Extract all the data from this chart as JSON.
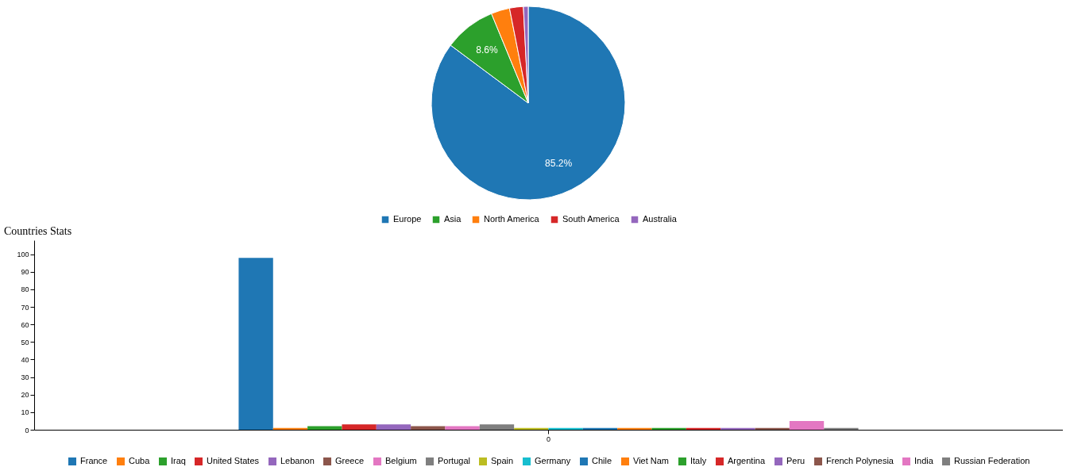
{
  "chart_data": [
    {
      "type": "pie",
      "categories": [
        "Europe",
        "Asia",
        "North America",
        "South America",
        "Australia"
      ],
      "values": [
        85.2,
        8.6,
        3.1,
        2.3,
        0.8
      ],
      "colors": [
        "#1f77b4",
        "#2ca02c",
        "#ff7f0e",
        "#d62728",
        "#9467bd"
      ],
      "value_labels": [
        "85.2%",
        "8.6%",
        null,
        null,
        null
      ],
      "legend": "bottom"
    },
    {
      "type": "bar",
      "title": "Countries Stats",
      "categories": [
        "0"
      ],
      "series": [
        {
          "name": "France",
          "color": "#1f77b4",
          "values": [
            98
          ]
        },
        {
          "name": "Cuba",
          "color": "#ff7f0e",
          "values": [
            1
          ]
        },
        {
          "name": "Iraq",
          "color": "#2ca02c",
          "values": [
            2
          ]
        },
        {
          "name": "United States",
          "color": "#d62728",
          "values": [
            3
          ]
        },
        {
          "name": "Lebanon",
          "color": "#9467bd",
          "values": [
            3
          ]
        },
        {
          "name": "Greece",
          "color": "#8c564b",
          "values": [
            2
          ]
        },
        {
          "name": "Belgium",
          "color": "#e377c2",
          "values": [
            2
          ]
        },
        {
          "name": "Portugal",
          "color": "#7f7f7f",
          "values": [
            3
          ]
        },
        {
          "name": "Spain",
          "color": "#bcbd22",
          "values": [
            1
          ]
        },
        {
          "name": "Germany",
          "color": "#17becf",
          "values": [
            1
          ]
        },
        {
          "name": "Chile",
          "color": "#1f77b4",
          "values": [
            1
          ]
        },
        {
          "name": "Viet Nam",
          "color": "#ff7f0e",
          "values": [
            1
          ]
        },
        {
          "name": "Italy",
          "color": "#2ca02c",
          "values": [
            1
          ]
        },
        {
          "name": "Argentina",
          "color": "#d62728",
          "values": [
            1
          ]
        },
        {
          "name": "Peru",
          "color": "#9467bd",
          "values": [
            1
          ]
        },
        {
          "name": "French Polynesia",
          "color": "#8c564b",
          "values": [
            1
          ]
        },
        {
          "name": "India",
          "color": "#e377c2",
          "values": [
            5
          ]
        },
        {
          "name": "Russian Federation",
          "color": "#7f7f7f",
          "values": [
            1
          ]
        }
      ],
      "ylim": [
        0,
        108
      ],
      "yticks": [
        0,
        10,
        20,
        30,
        40,
        50,
        60,
        70,
        80,
        90,
        100
      ],
      "grid": false,
      "legend": "bottom"
    }
  ]
}
